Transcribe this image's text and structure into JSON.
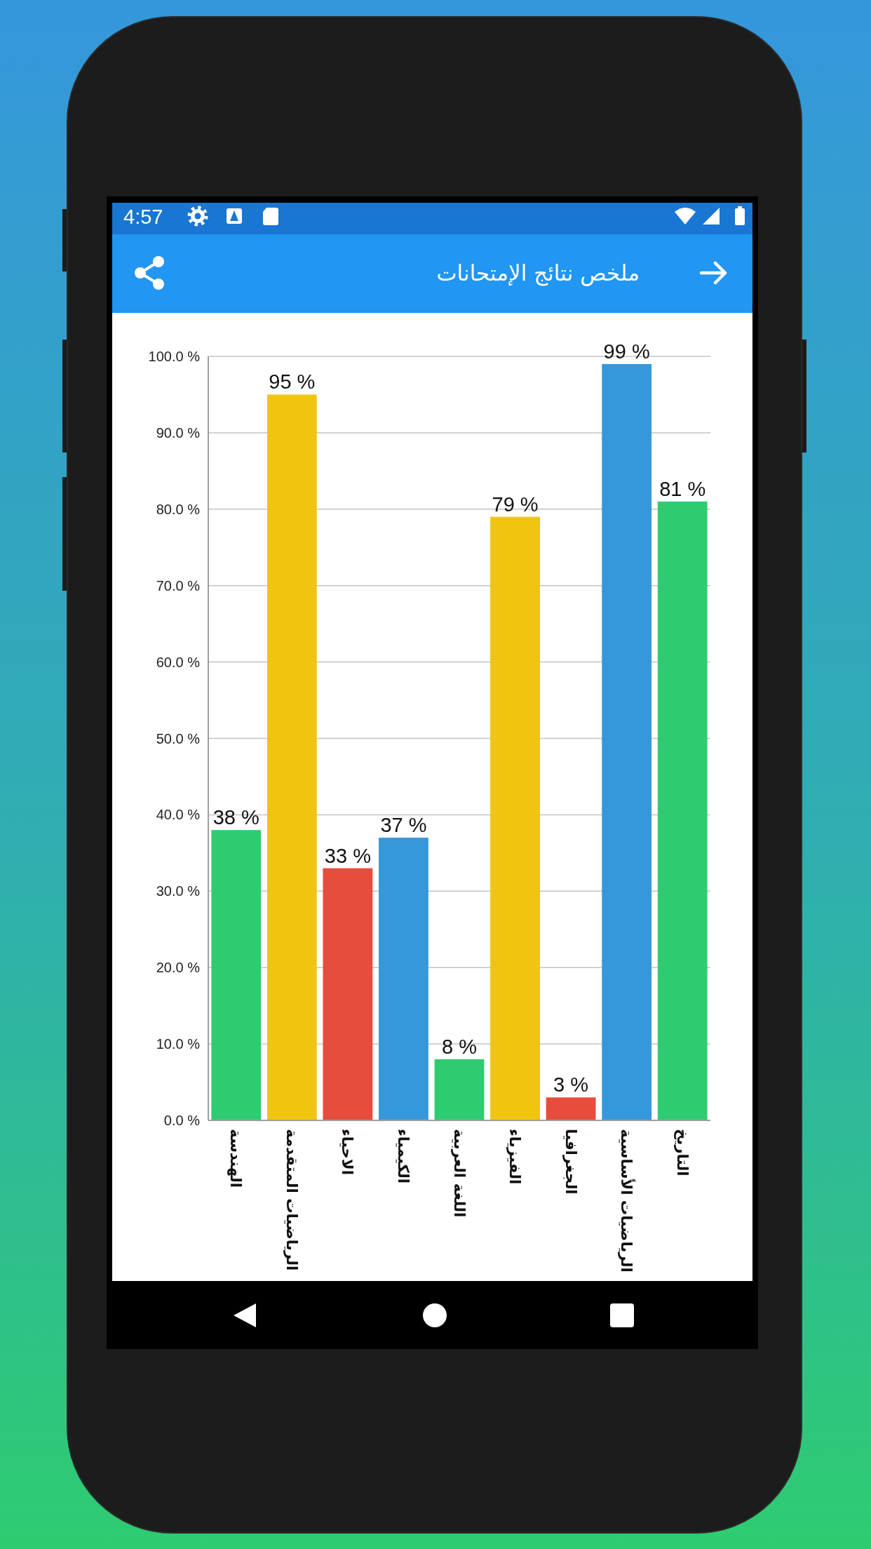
{
  "chart_data": {
    "type": "bar",
    "title": "ملخص نتائج الإمتحانات",
    "categories": [
      "الهندسة",
      "الرياضيات المتقدمة",
      "الاحياء",
      "الكيمياء",
      "اللغة العربية",
      "الفيزياء",
      "الجغرافيا",
      "الرياضيات الأساسية",
      "التاريخ"
    ],
    "values": [
      38,
      95,
      33,
      37,
      8,
      79,
      3,
      99,
      81
    ],
    "colors": [
      "#2ecc71",
      "#f1c40f",
      "#e74c3c",
      "#3498db",
      "#2ecc71",
      "#f1c40f",
      "#e74c3c",
      "#3498db",
      "#2ecc71"
    ],
    "value_labels": [
      "38 %",
      "95 %",
      "33 %",
      "37 %",
      "8 %",
      "79 %",
      "3 %",
      "99 %",
      "81 %"
    ],
    "ylim": [
      0,
      100
    ],
    "yticks": [
      {
        "value": 0,
        "label": "0.0 %"
      },
      {
        "value": 10,
        "label": "10.0 %"
      },
      {
        "value": 20,
        "label": "20.0 %"
      },
      {
        "value": 30,
        "label": "30.0 %"
      },
      {
        "value": 40,
        "label": "40.0 %"
      },
      {
        "value": 50,
        "label": "50.0 %"
      },
      {
        "value": 60,
        "label": "60.0 %"
      },
      {
        "value": 70,
        "label": "70.0 %"
      },
      {
        "value": 80,
        "label": "80.0 %"
      },
      {
        "value": 90,
        "label": "90.0 %"
      },
      {
        "value": 100,
        "label": "100.0 %"
      }
    ],
    "grid": "y",
    "annotations": [
      "4:57"
    ]
  }
}
